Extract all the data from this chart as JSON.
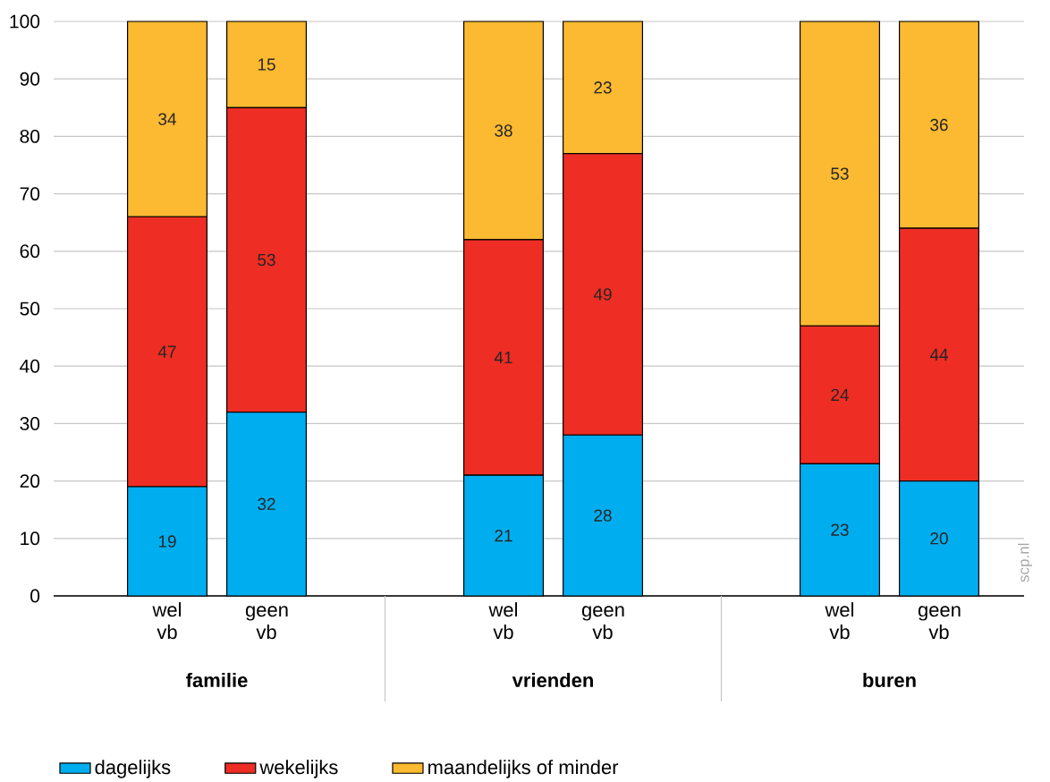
{
  "chart_data": {
    "type": "bar",
    "stacked": true,
    "categories": [
      "wel vb",
      "geen vb",
      "wel vb",
      "geen vb",
      "wel vb",
      "geen vb"
    ],
    "series": [
      {
        "name": "dagelijks",
        "color": "#00aeef",
        "values": [
          19,
          32,
          21,
          28,
          23,
          20
        ]
      },
      {
        "name": "wekelijks",
        "color": "#ee2d24",
        "values": [
          47,
          53,
          41,
          49,
          24,
          44
        ]
      },
      {
        "name": "maandelijks of minder",
        "color": "#fbba31",
        "values": [
          34,
          15,
          38,
          23,
          53,
          36
        ]
      }
    ],
    "annotations": [
      "familie",
      "vrienden",
      "buren",
      "scp.nl"
    ],
    "ylim": [
      0,
      100
    ],
    "yticks": [
      0,
      10,
      20,
      30,
      40,
      50,
      60,
      70,
      80,
      90,
      100
    ],
    "grid": "y",
    "legend": "bottom left",
    "data_labels": true
  }
}
